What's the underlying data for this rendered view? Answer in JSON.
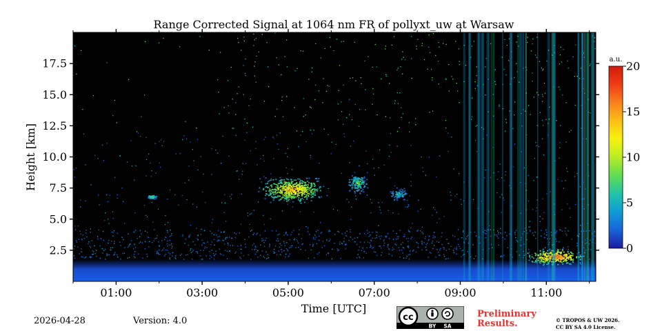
{
  "chart_data": {
    "type": "heatmap",
    "title": "Range Corrected Signal at 1064 nm FR of pollyxt_uw at Warsaw",
    "xlabel": "Time [UTC]",
    "ylabel": "Height [km]",
    "xlim": [
      0.0,
      12.15
    ],
    "ylim": [
      0.0,
      20.0
    ],
    "xticks": [
      1,
      3,
      5,
      7,
      9,
      11
    ],
    "xtick_labels": [
      "01:00",
      "03:00",
      "05:00",
      "07:00",
      "09:00",
      "11:00"
    ],
    "yticks": [
      2.5,
      5.0,
      7.5,
      10.0,
      12.5,
      15.0,
      17.5
    ],
    "ytick_labels": [
      "2.5",
      "5.0",
      "7.5",
      "10.0",
      "12.5",
      "15.0",
      "17.5"
    ],
    "colorbar": {
      "label": "a.u.",
      "range": [
        0,
        20
      ],
      "ticks": [
        0,
        5,
        10,
        15,
        20
      ],
      "tick_labels": [
        "0",
        "5",
        "10",
        "15",
        "20"
      ],
      "colormap": [
        "#1e1aa0",
        "#1764d8",
        "#109cd6",
        "#22c4a8",
        "#60dc50",
        "#b8ec28",
        "#f6f20f",
        "#fbbf17",
        "#f8801e",
        "#ee3d16",
        "#d21b0c"
      ]
    },
    "features": [
      {
        "name": "boundary layer",
        "t_start": 0.0,
        "t_end": 12.15,
        "h_bottom": 0.0,
        "h_top": 1.8,
        "level": 2
      },
      {
        "name": "mid-level cloud",
        "t_start": 4.2,
        "t_end": 6.0,
        "h_bottom": 6.2,
        "h_top": 8.6,
        "level": 14
      },
      {
        "name": "mid-level cloud",
        "t_start": 6.3,
        "t_end": 6.9,
        "h_bottom": 7.0,
        "h_top": 8.8,
        "level": 8
      },
      {
        "name": "mid-level cloud",
        "t_start": 7.3,
        "t_end": 7.8,
        "h_bottom": 6.4,
        "h_top": 7.6,
        "level": 6
      },
      {
        "name": "aerosol puff",
        "t_start": 1.7,
        "t_end": 1.95,
        "h_bottom": 6.6,
        "h_top": 7.0,
        "level": 9
      },
      {
        "name": "low cloud",
        "t_start": 10.4,
        "t_end": 12.0,
        "h_bottom": 1.2,
        "h_top": 2.8,
        "level": 17
      },
      {
        "name": "precipitation streaks",
        "t_start": 9.0,
        "t_end": 12.15,
        "h_bottom": 0.0,
        "h_top": 20.0,
        "level": 3
      }
    ]
  },
  "footer": {
    "date": "2026-04-28",
    "version": "Version: 4.0",
    "preliminary_line1": "Preliminary",
    "preliminary_line2": "Results.",
    "copyright_line1": "© TROPOS & UW 2026.",
    "copyright_line2": "CC BY SA 4.0 License.",
    "license_badge_by": "BY",
    "license_badge_sa": "SA"
  }
}
